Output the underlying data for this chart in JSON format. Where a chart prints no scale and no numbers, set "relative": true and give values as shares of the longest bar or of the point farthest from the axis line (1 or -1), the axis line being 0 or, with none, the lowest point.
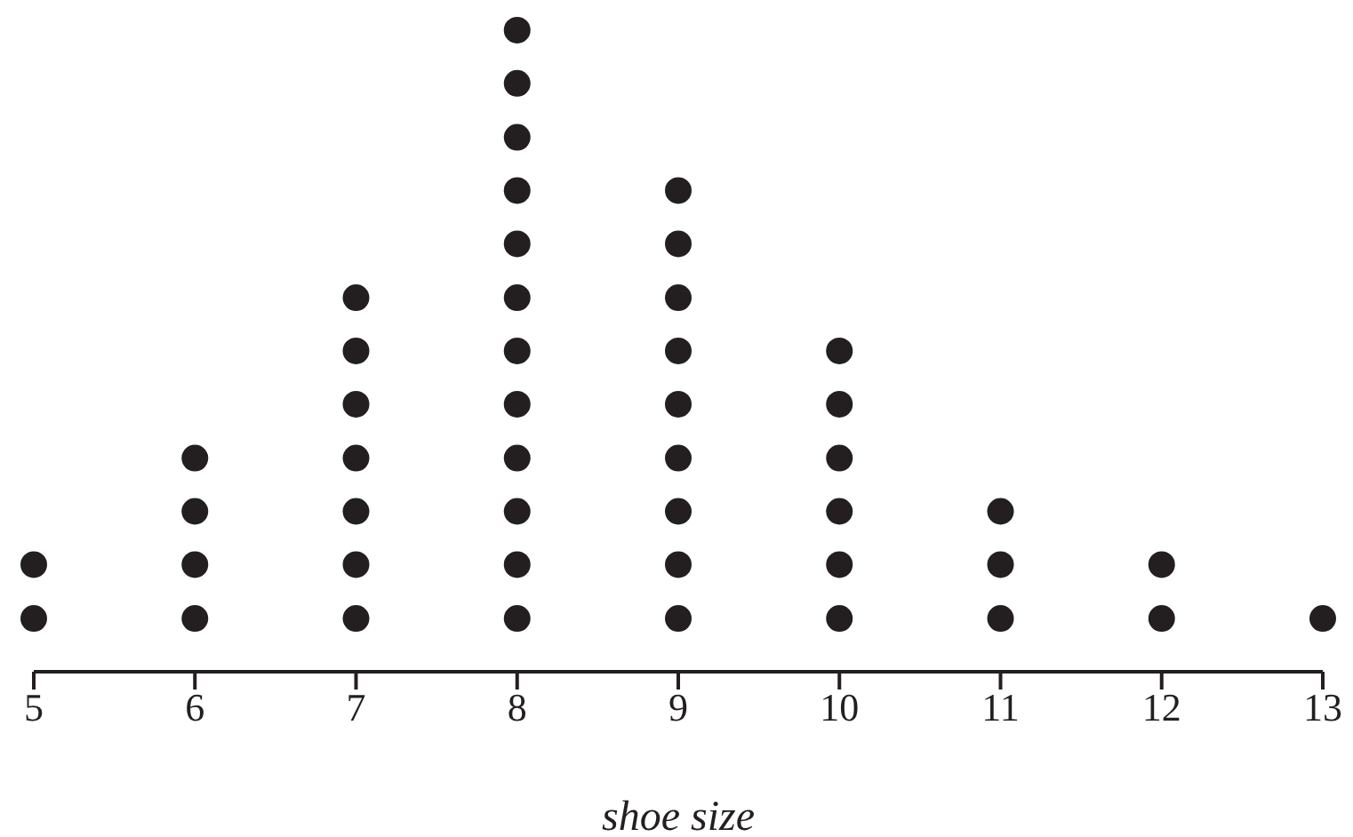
{
  "chart_data": {
    "type": "scatter",
    "relative": true,
    "xlabel": "shoe size",
    "xlim": [
      5,
      13
    ],
    "xticks": [
      5,
      6,
      7,
      8,
      9,
      10,
      11,
      12,
      13
    ],
    "tick_labels": "x",
    "grid": false,
    "marker": "circle",
    "legend": false,
    "series": [
      {
        "color": "#231f20",
        "x": [
          5,
          5,
          6,
          6,
          6,
          6,
          7,
          7,
          7,
          7,
          7,
          7,
          7,
          8,
          8,
          8,
          8,
          8,
          8,
          8,
          8,
          8,
          8,
          8,
          8,
          9,
          9,
          9,
          9,
          9,
          9,
          9,
          9,
          9,
          10,
          10,
          10,
          10,
          10,
          10,
          11,
          11,
          11,
          12,
          12,
          13
        ],
        "values": [
          0.083,
          0.167,
          0.083,
          0.167,
          0.25,
          0.333,
          0.083,
          0.167,
          0.25,
          0.333,
          0.417,
          0.5,
          0.583,
          0.083,
          0.167,
          0.25,
          0.333,
          0.417,
          0.5,
          0.583,
          0.667,
          0.75,
          0.833,
          0.917,
          1,
          0.083,
          0.167,
          0.25,
          0.333,
          0.417,
          0.5,
          0.583,
          0.667,
          0.75,
          0.083,
          0.167,
          0.25,
          0.333,
          0.417,
          0.5,
          0.083,
          0.167,
          0.25,
          0.083,
          0.167,
          0.083
        ]
      }
    ]
  }
}
